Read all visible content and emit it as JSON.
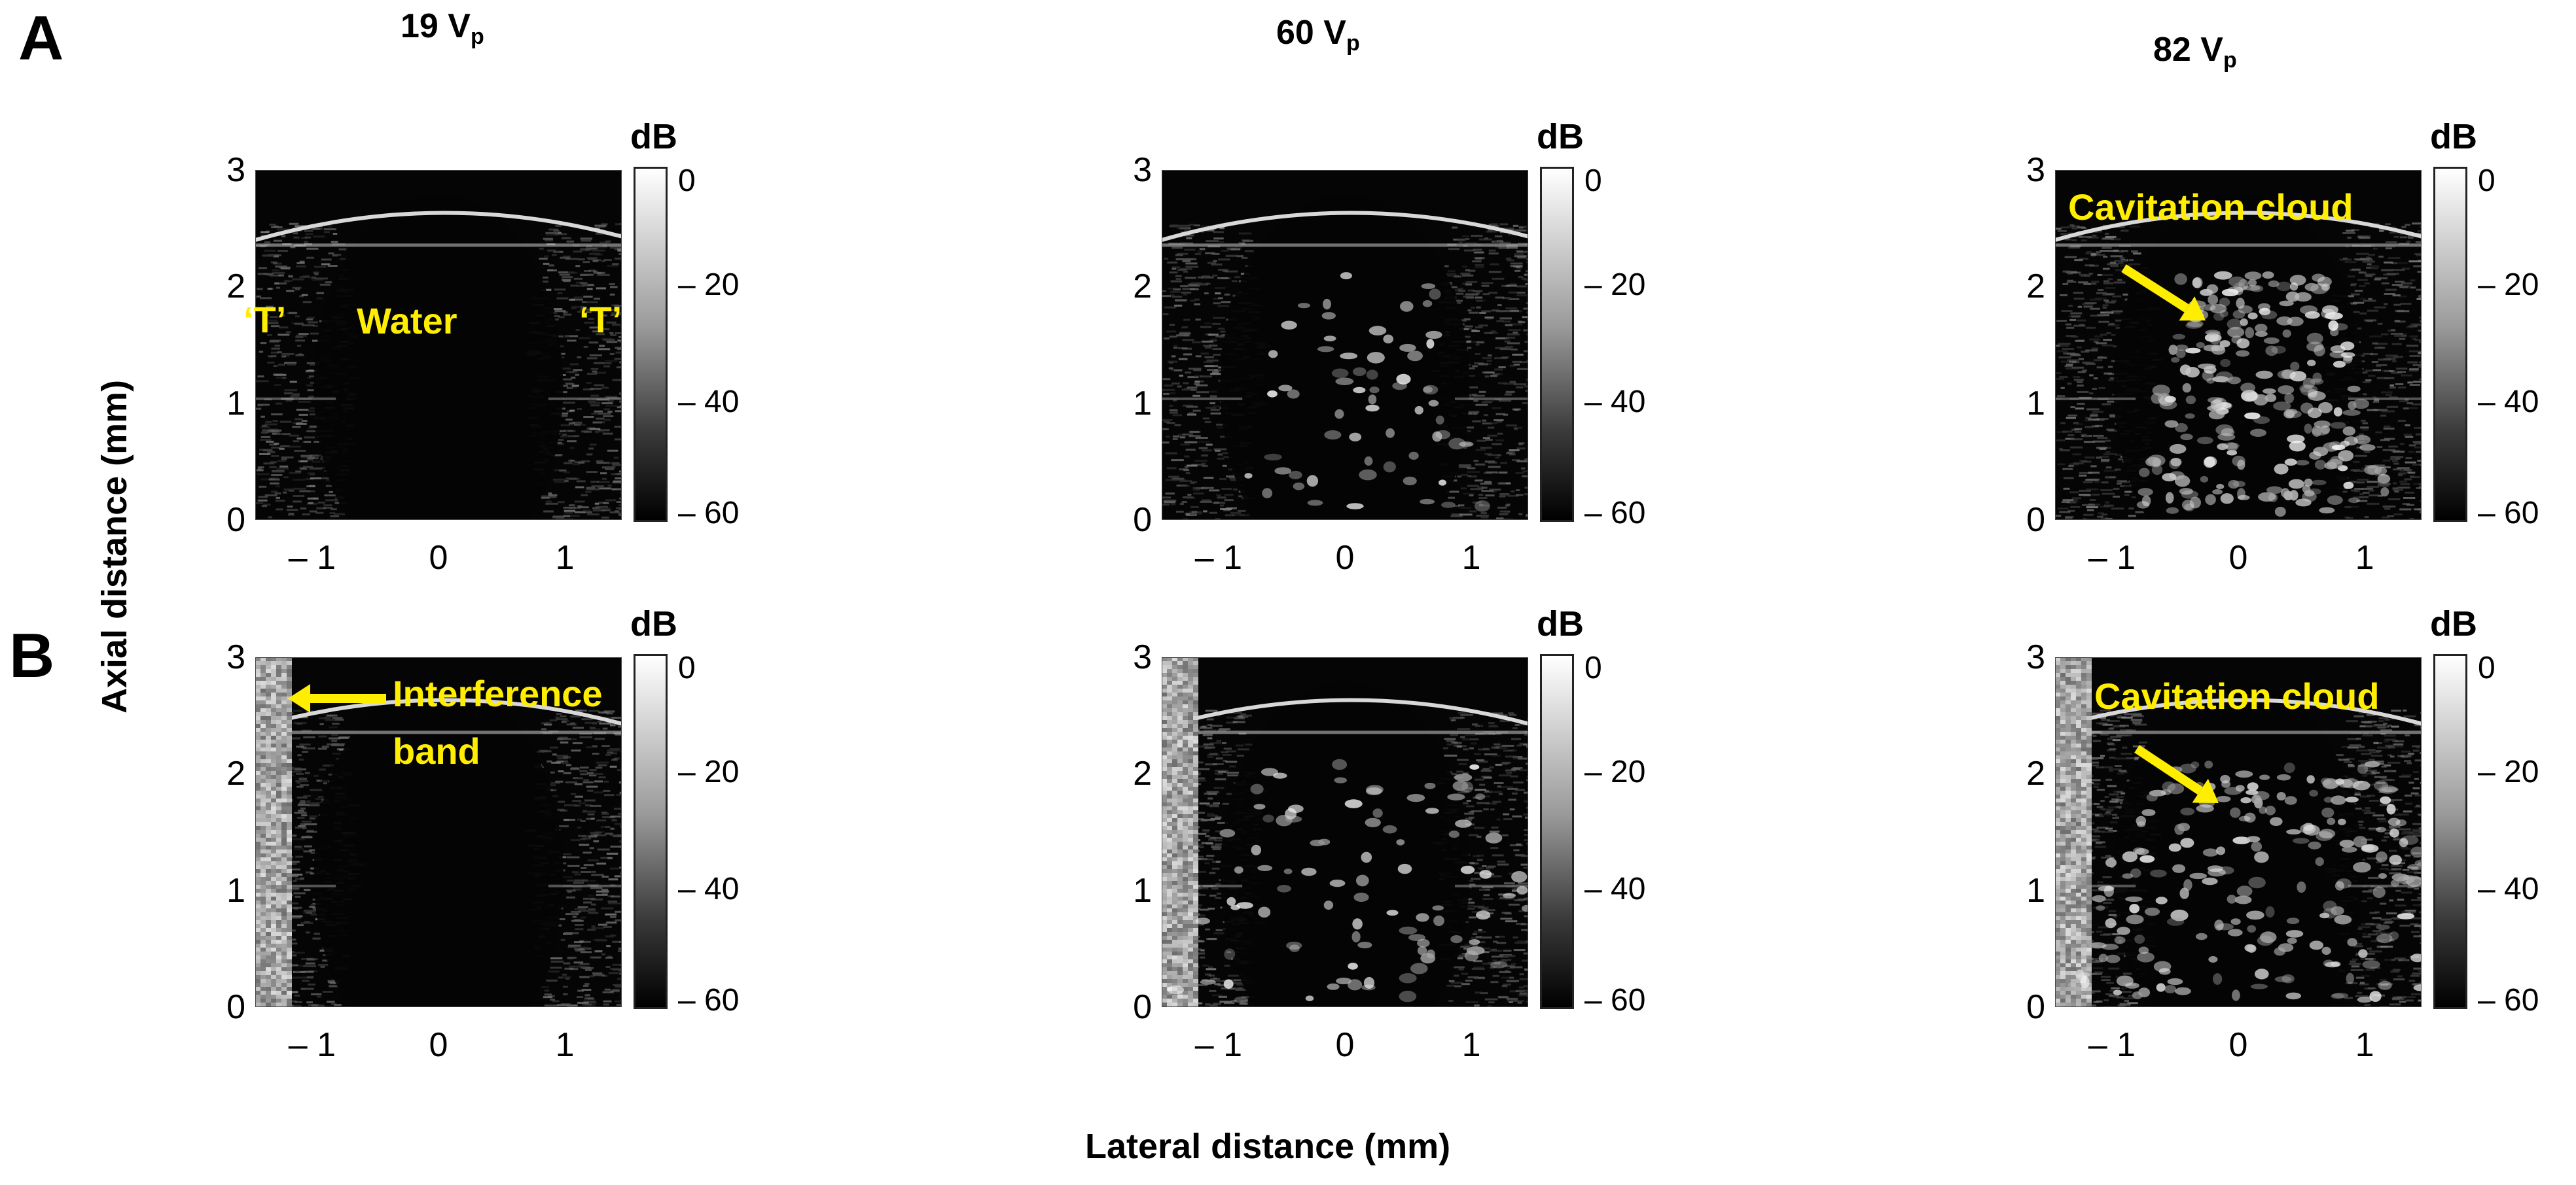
{
  "row_labels": [
    "A",
    "B"
  ],
  "column_titles": [
    {
      "value": "19 V",
      "sub": "p"
    },
    {
      "value": "60 V",
      "sub": "p"
    },
    {
      "value": "82 V",
      "sub": "p"
    }
  ],
  "y_axis_title": "Axial distance (mm)",
  "x_axis_title": "Lateral distance (mm)",
  "y_ticks": [
    "3",
    "2",
    "1",
    "0"
  ],
  "x_ticks": [
    "– 1",
    "0",
    "1"
  ],
  "colorbar": {
    "title": "dB",
    "ticks": [
      "0",
      "– 20",
      "– 40",
      "– 60"
    ],
    "range_db": [
      -60,
      0
    ]
  },
  "annotations": {
    "t_left": "‘T’",
    "t_right": "‘T’",
    "water": "Water",
    "cavitation_cloud": "Cavitation cloud",
    "interference_line1": "Interference",
    "interference_line2": "band"
  },
  "colors": {
    "annotation": "#ffee00",
    "image_background": "#050505"
  },
  "panels": [
    {
      "row": "A",
      "voltage": "19 Vₚ",
      "cloud_intensity": 0.0
    },
    {
      "row": "A",
      "voltage": "60 Vₚ",
      "cloud_intensity": 0.2
    },
    {
      "row": "A",
      "voltage": "82 Vₚ",
      "cloud_intensity": 0.8
    },
    {
      "row": "B",
      "voltage": "19 Vₚ",
      "cloud_intensity": 0.0
    },
    {
      "row": "B",
      "voltage": "60 Vₚ",
      "cloud_intensity": 0.3
    },
    {
      "row": "B",
      "voltage": "82 Vₚ",
      "cloud_intensity": 0.7
    }
  ]
}
